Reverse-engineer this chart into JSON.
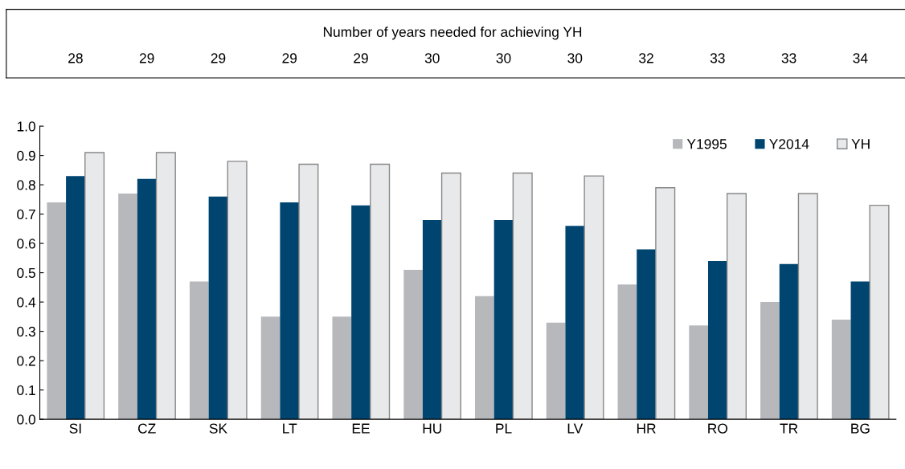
{
  "chart_data": {
    "type": "bar",
    "categories": [
      "SI",
      "CZ",
      "SK",
      "LT",
      "EE",
      "HU",
      "PL",
      "LV",
      "HR",
      "RO",
      "TR",
      "BG"
    ],
    "series": [
      {
        "name": "Y1995",
        "color": "#b7b8bc",
        "values": [
          0.74,
          0.77,
          0.47,
          0.35,
          0.35,
          0.51,
          0.42,
          0.33,
          0.46,
          0.32,
          0.4,
          0.34
        ]
      },
      {
        "name": "Y2014",
        "color": "#004570",
        "values": [
          0.83,
          0.82,
          0.76,
          0.74,
          0.73,
          0.68,
          0.68,
          0.66,
          0.58,
          0.54,
          0.53,
          0.47
        ]
      },
      {
        "name": "YH",
        "color": "#e8e9eb",
        "values": [
          0.91,
          0.91,
          0.88,
          0.87,
          0.87,
          0.84,
          0.84,
          0.83,
          0.79,
          0.77,
          0.77,
          0.73
        ]
      }
    ],
    "ylim": [
      0,
      1.0
    ],
    "yticks": [
      {
        "value": 0,
        "label": "0.0"
      },
      {
        "value": 0.1,
        "label": "0.1"
      },
      {
        "value": 0.2,
        "label": "0.2"
      },
      {
        "value": 0.3,
        "label": "0.3"
      },
      {
        "value": 0.4,
        "label": "0.4"
      },
      {
        "value": 0.5,
        "label": "0.5"
      },
      {
        "value": 0.6,
        "label": "0.6"
      },
      {
        "value": 0.7,
        "label": "0.7"
      },
      {
        "value": 0.8,
        "label": "0.8"
      },
      {
        "value": 0.9,
        "label": "0.9"
      },
      {
        "value": 1.0,
        "label": "1.0"
      }
    ],
    "grid": false,
    "legend": "top right",
    "annotations": [
      "Number of years needed for achieving YH",
      "28",
      "29",
      "29",
      "29",
      "29",
      "30",
      "30",
      "30",
      "32",
      "33",
      "33",
      "34"
    ]
  }
}
